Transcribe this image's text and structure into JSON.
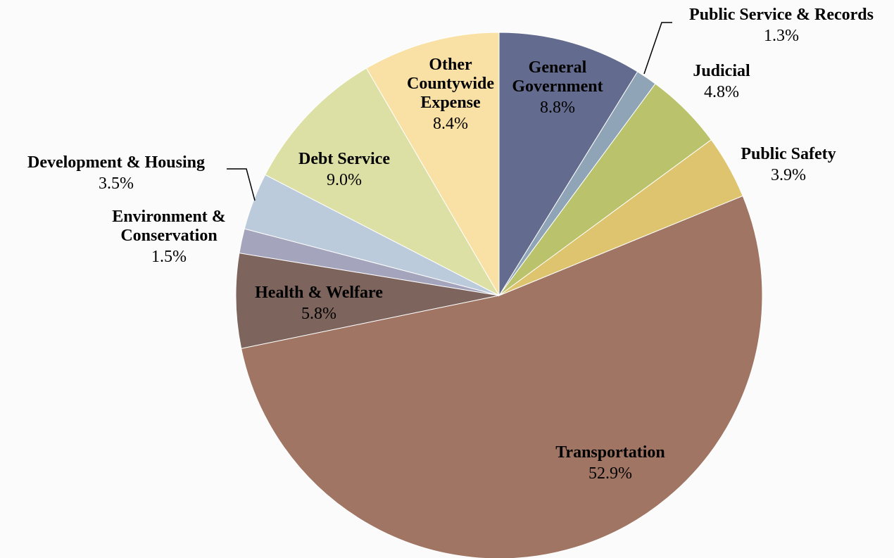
{
  "chart_data": {
    "type": "pie",
    "categories": [
      "General Government",
      "Public Service & Records",
      "Judicial",
      "Public Safety",
      "Transportation",
      "Health & Welfare",
      "Environment & Conservation",
      "Development & Housing",
      "Debt Service",
      "Other Countywide Expense"
    ],
    "values": [
      8.8,
      1.3,
      4.8,
      3.9,
      52.9,
      5.8,
      1.5,
      3.5,
      9.0,
      8.4
    ],
    "value_labels": [
      "8.8%",
      "1.3%",
      "4.8%",
      "3.9%",
      "52.9%",
      "5.8%",
      "1.5%",
      "3.5%",
      "9.0%",
      "8.4%"
    ],
    "colors": [
      "#636b8f",
      "#8fa4b6",
      "#bac26c",
      "#dec46e",
      "#a07564",
      "#7d645c",
      "#a4a4bd",
      "#bccbdb",
      "#dde0a4",
      "#f9e0a4"
    ]
  }
}
